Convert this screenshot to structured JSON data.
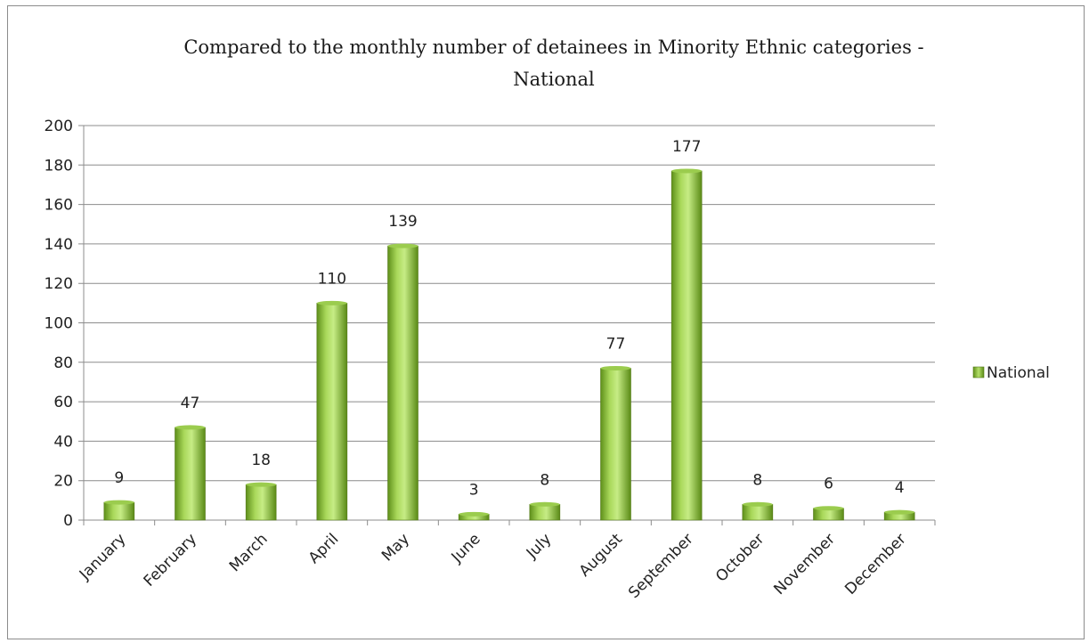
{
  "chart_data": {
    "type": "bar",
    "title_line1": "Compared to the monthly number of detainees in Minority Ethnic categories -",
    "title_line2": "National",
    "categories": [
      "January",
      "February",
      "March",
      "April",
      "May",
      "June",
      "July",
      "August",
      "September",
      "October",
      "November",
      "December"
    ],
    "series": [
      {
        "name": "National",
        "values": [
          9,
          47,
          18,
          110,
          139,
          3,
          8,
          77,
          177,
          8,
          6,
          4
        ],
        "color": "#8dc63f"
      }
    ],
    "ylim": [
      0,
      200
    ],
    "yticks": [
      0,
      20,
      40,
      60,
      80,
      100,
      120,
      140,
      160,
      180,
      200
    ],
    "grid": true,
    "legend_position": "right",
    "data_labels": true
  }
}
